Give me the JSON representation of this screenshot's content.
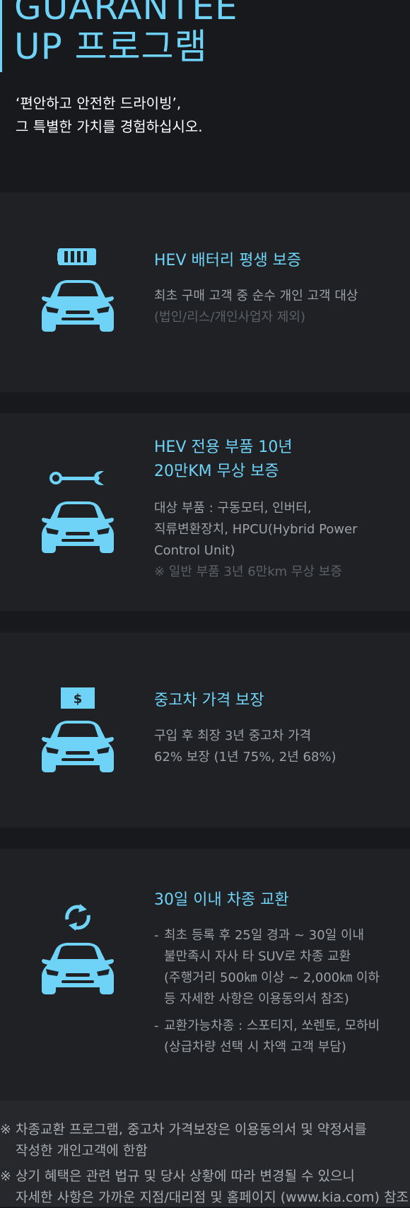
{
  "hero": {
    "title_line1": "GUARANTEE",
    "title_line2": "UP 프로그램",
    "subtitle_line1": "‘편안하고 안전한 드라이빙’,",
    "subtitle_line2": "그 특별한 가치를 경험하십시오."
  },
  "sections": [
    {
      "icon": "battery-icon",
      "title_lines": [
        "HEV 배터리 평생 보증"
      ],
      "desc_lines": [
        "최초 구매 고객 중 순수 개인 고객 대상"
      ],
      "note_lines": [
        "(법인/리스/개인사업자 제외)"
      ]
    },
    {
      "icon": "wrench-icon",
      "title_lines": [
        "HEV 전용 부품 10년",
        "20만KM 무상 보증"
      ],
      "desc_lines": [
        "대상 부품 : 구동모터, 인버터,",
        "직류변환장치, HPCU(Hybrid Power",
        "Control Unit)"
      ],
      "note_lines": [
        "※ 일반 부품 3년 6만km 무상 보증"
      ]
    },
    {
      "icon": "dollar-tag-icon",
      "title_lines": [
        "중고차 가격 보장"
      ],
      "desc_lines": [
        "구입 후 최장 3년 중고차 가격",
        "62% 보장 (1년 75%, 2년 68%)"
      ],
      "note_lines": []
    },
    {
      "icon": "exchange-arrows-icon",
      "title_lines": [
        "30일 이내 차종 교환"
      ],
      "items": [
        [
          "최초 등록 후 25일 경과 ~ 30일 이내",
          "불만족시 자사 타 SUV로 차종 교환",
          "(주행거리 500㎞ 이상 ~ 2,000㎞ 이하",
          "등 자세한 사항은 이용동의서 참조)"
        ],
        [
          "교환가능차종 : 스포티지, 쏘렌토, 모하비",
          "(상급차량 선택 시 차액 고객 부담)"
        ]
      ]
    }
  ],
  "footer": {
    "mark": "※",
    "note1_line1": "차종교환 프로그램, 중고차 가격보장은 이용동의서 및 약정서를",
    "note1_line2": "작성한 개인고객에 한함",
    "note2_line1": "상기 혜택은 관련 법규 및 당사 상황에 따라 변경될 수 있으니",
    "note2_line2": "자세한 사항은 가까운 지점/대리점 및 홈페이지 (www.kia.com) 참조"
  },
  "colors": {
    "accent": "#6fd3f7",
    "background": "#17191c",
    "panel": "#1f2124",
    "footer": "#26282b"
  }
}
